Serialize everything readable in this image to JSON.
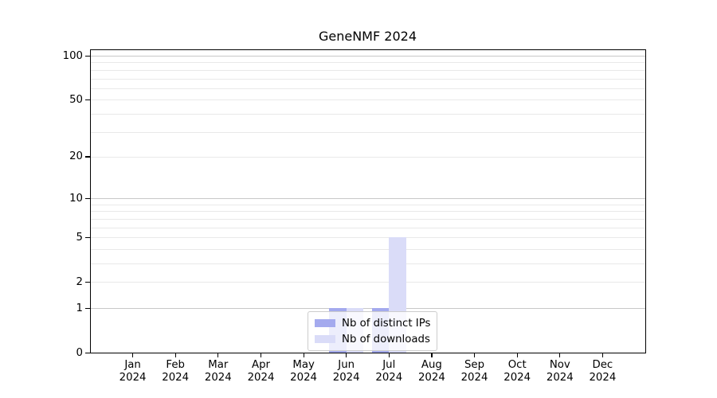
{
  "chart_data": {
    "type": "bar",
    "title": "GeneNMF 2024",
    "xlabel": "",
    "ylabel": "",
    "categories": [
      "Jan",
      "Feb",
      "Mar",
      "Apr",
      "May",
      "Jun",
      "Jul",
      "Aug",
      "Sep",
      "Oct",
      "Nov",
      "Dec"
    ],
    "category_year": "2024",
    "series": [
      {
        "name": "Nb of distinct IPs",
        "color": "#a4aaee",
        "values": [
          0,
          0,
          0,
          0,
          0,
          1,
          1,
          0,
          0,
          0,
          0,
          0
        ]
      },
      {
        "name": "Nb of downloads",
        "color": "#dadcf8",
        "values": [
          0,
          0,
          0,
          0,
          0,
          1,
          5,
          0,
          0,
          0,
          0,
          0
        ]
      }
    ],
    "yscale": "log1p",
    "ylim": [
      0,
      100
    ],
    "ytick_values": [
      0,
      1,
      2,
      5,
      10,
      20,
      50,
      100
    ],
    "grid_major_values": [
      1,
      10,
      100
    ],
    "grid_minor_values": [
      2,
      3,
      4,
      5,
      6,
      7,
      8,
      9,
      20,
      30,
      40,
      50,
      60,
      70,
      80,
      90
    ],
    "legend_position": "bottom-center",
    "colors": {
      "grid_major": "#c8c8c8",
      "grid_minor": "#e9e9e9",
      "axis": "#000000",
      "legend_border": "#cccccc",
      "background": "#ffffff"
    }
  }
}
